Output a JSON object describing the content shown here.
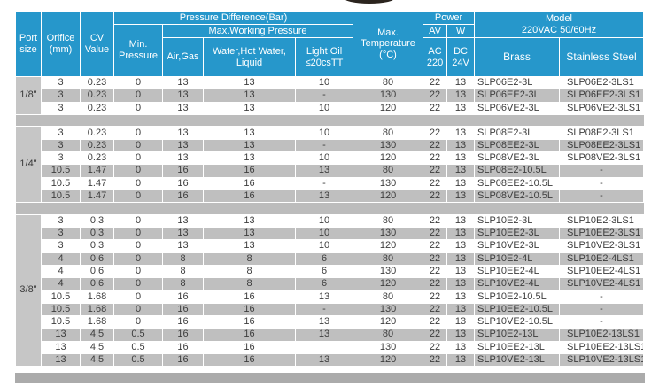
{
  "colors": {
    "header_blue": "#2697CB",
    "shaded_row_gray": "#BFBFBF",
    "port_cell_gray": "#C6C6C6",
    "separator_gray": "#BCBCBC",
    "bottom_band_gray": "#ABABAB",
    "header_text": "#FFFFFF",
    "body_text": "#3D3D3D"
  },
  "table": {
    "header": {
      "port_size": "Port\nsize",
      "orifice": "Orifice\n(mm)",
      "cv": "CV\nValue",
      "pressure_diff": "Pressure Difference(Bar)",
      "max_working": "Max.Working Pressure",
      "min_pressure": "Min.\nPressure",
      "air_gas": "Air,Gas",
      "water": "Water,Hot Water,\nLiquid",
      "light_oil": "Light Oil\n≤20csTT",
      "max_temp": "Max.\nTemperature\n(°C)",
      "power": "Power",
      "av": "AV",
      "w": "W",
      "ac220": "AC\n220",
      "dc24v": "DC\n24V",
      "model": "Model\n220VAC 50/60Hz",
      "brass": "Brass",
      "stainless": "Stainless Steel"
    },
    "groups": [
      {
        "port": "1/8\"",
        "rows": [
          {
            "values": [
              "3",
              "0.23",
              "0",
              "13",
              "13",
              "10",
              "80",
              "22",
              "13",
              "SLP06E2-3L",
              "SLP06E2-3LS1"
            ]
          },
          {
            "values": [
              "3",
              "0.23",
              "0",
              "13",
              "13",
              "-",
              "130",
              "22",
              "13",
              "SLP06EE2-3L",
              "SLP06EE2-3LS1"
            ]
          },
          {
            "values": [
              "3",
              "0.23",
              "0",
              "13",
              "13",
              "10",
              "120",
              "22",
              "13",
              "SLP06VE2-3L",
              "SLP06VE2-3LS1"
            ]
          }
        ]
      },
      {
        "port": "1/4\"",
        "rows": [
          {
            "values": [
              "3",
              "0.23",
              "0",
              "13",
              "13",
              "10",
              "80",
              "22",
              "13",
              "SLP08E2-3L",
              "SLP08E2-3LS1"
            ]
          },
          {
            "values": [
              "3",
              "0.23",
              "0",
              "13",
              "13",
              "-",
              "130",
              "22",
              "13",
              "SLP08EE2-3L",
              "SLP08EE2-3LS1"
            ]
          },
          {
            "values": [
              "3",
              "0.23",
              "0",
              "13",
              "13",
              "10",
              "120",
              "22",
              "13",
              "SLP08VE2-3L",
              "SLP08VE2-3LS1"
            ]
          },
          {
            "values": [
              "10.5",
              "1.47",
              "0",
              "16",
              "16",
              "13",
              "80",
              "22",
              "13",
              "SLP08E2-10.5L",
              "-"
            ]
          },
          {
            "values": [
              "10.5",
              "1.47",
              "0",
              "16",
              "16",
              "-",
              "130",
              "22",
              "13",
              "SLP08EE2-10.5L",
              "-"
            ]
          },
          {
            "values": [
              "10.5",
              "1.47",
              "0",
              "16",
              "16",
              "13",
              "120",
              "22",
              "13",
              "SLP08VE2-10.5L",
              "-"
            ]
          }
        ]
      },
      {
        "port": "3/8\"",
        "rows": [
          {
            "values": [
              "3",
              "0.3",
              "0",
              "13",
              "13",
              "10",
              "80",
              "22",
              "13",
              "SLP10E2-3L",
              "SLP10E2-3LS1"
            ]
          },
          {
            "values": [
              "3",
              "0.3",
              "0",
              "13",
              "13",
              "10",
              "130",
              "22",
              "13",
              "SLP10EE2-3L",
              "SLP10EE2-3LS1"
            ]
          },
          {
            "values": [
              "3",
              "0.3",
              "0",
              "13",
              "13",
              "10",
              "120",
              "22",
              "13",
              "SLP10VE2-3L",
              "SLP10VE2-3LS1"
            ]
          },
          {
            "values": [
              "4",
              "0.6",
              "0",
              "8",
              "8",
              "6",
              "80",
              "22",
              "13",
              "SLP10E2-4L",
              "SLP10E2-4LS1"
            ]
          },
          {
            "values": [
              "4",
              "0.6",
              "0",
              "8",
              "8",
              "6",
              "130",
              "22",
              "13",
              "SLP10EE2-4L",
              "SLP10EE2-4LS1"
            ]
          },
          {
            "values": [
              "4",
              "0.6",
              "0",
              "8",
              "8",
              "6",
              "120",
              "22",
              "13",
              "SLP10VE2-4L",
              "SLP10VE2-4LS1"
            ]
          },
          {
            "values": [
              "10.5",
              "1.68",
              "0",
              "16",
              "16",
              "13",
              "80",
              "22",
              "13",
              "SLP10E2-10.5L",
              "-"
            ]
          },
          {
            "values": [
              "10.5",
              "1.68",
              "0",
              "16",
              "16",
              "-",
              "130",
              "22",
              "13",
              "SLP10EE2-10.5L",
              "-"
            ]
          },
          {
            "values": [
              "10.5",
              "1.68",
              "0",
              "16",
              "16",
              "13",
              "120",
              "22",
              "13",
              "SLP10VE2-10.5L",
              "-"
            ]
          },
          {
            "values": [
              "13",
              "4.5",
              "0.5",
              "16",
              "16",
              "13",
              "80",
              "22",
              "13",
              "SLP10E2-13L",
              "SLP10E2-13LS1"
            ]
          },
          {
            "values": [
              "13",
              "4.5",
              "0.5",
              "16",
              "16",
              "",
              "130",
              "22",
              "13",
              "SLP10EE2-13L",
              "SLP10EE2-13LS1"
            ]
          },
          {
            "values": [
              "13",
              "4.5",
              "0.5",
              "16",
              "16",
              "13",
              "120",
              "22",
              "13",
              "SLP10VE2-13L",
              "SLP10VE2-13LS1"
            ]
          }
        ]
      }
    ]
  }
}
